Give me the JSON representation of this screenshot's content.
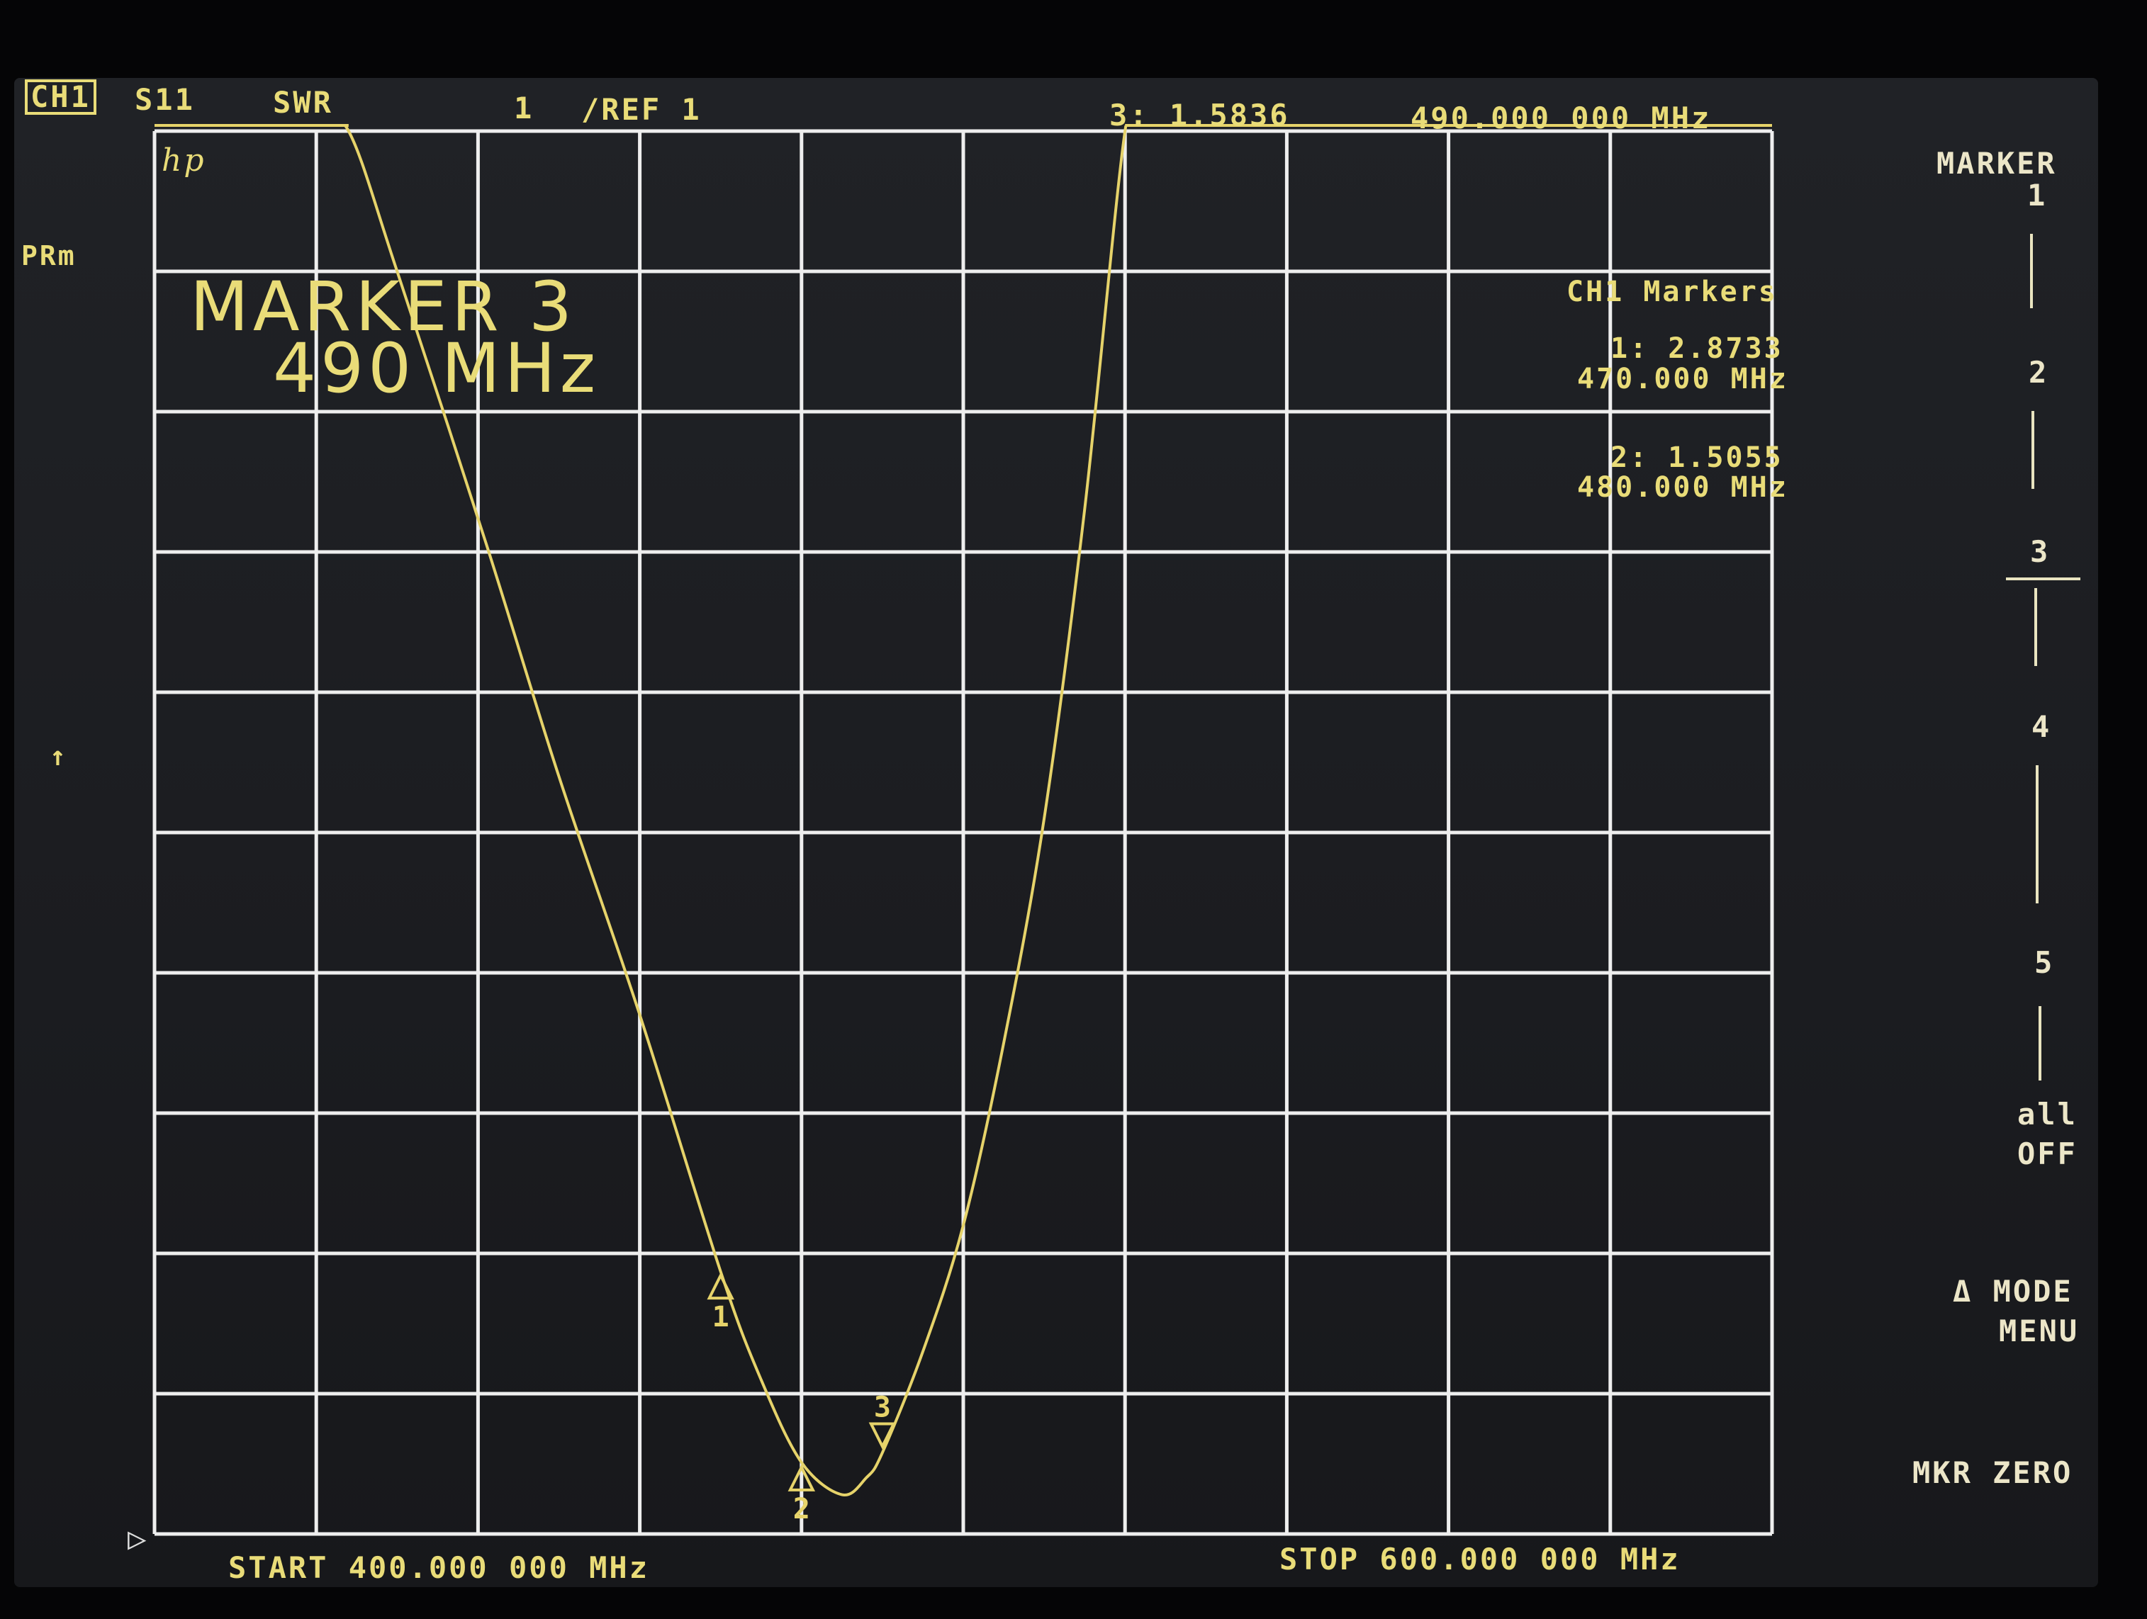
{
  "header": {
    "channel": "CH1",
    "parameter": "S11",
    "format": "SWR",
    "scale": "1",
    "reference": "/REF 1",
    "active_marker_readout": "3: 1.5836",
    "active_marker_frequency": "490.000 000 MHz"
  },
  "left_annotations": {
    "prm": "PRm",
    "arrow": "↑",
    "ref_pointer": "▷"
  },
  "logo": "hp",
  "marker_title": {
    "line1": "MARKER 3",
    "line2": "490 MHz"
  },
  "marker_list": {
    "title": "CH1 Markers",
    "items": [
      {
        "value": "1: 2.8733",
        "freq": "470.000 MHz"
      },
      {
        "value": "2: 1.5055",
        "freq": "480.000 MHz"
      }
    ]
  },
  "softkeys": {
    "title": "MARKER",
    "keys": [
      "1",
      "2",
      "3",
      "4",
      "5"
    ],
    "all_off": [
      "all",
      "OFF"
    ],
    "mode_menu": [
      "Δ MODE",
      "MENU"
    ],
    "mkr_zero": "MKR ZERO"
  },
  "footer": {
    "start": "START 400.000 000 MHz",
    "stop": "STOP 600.000 000 MHz"
  },
  "colors": {
    "trace": "#e6d36a",
    "grid": "#eeeeee",
    "text": "#e9dc78",
    "background": "#1c1d20"
  },
  "chart_data": {
    "type": "line",
    "xlabel": "",
    "ylabel": "",
    "x_unit": "MHz",
    "xlim": [
      400,
      600
    ],
    "ylim": [
      1,
      11
    ],
    "y_scale_per_div": 1,
    "divisions": {
      "x": 10,
      "y": 10
    },
    "grid": true,
    "series": [
      {
        "x": [
          420,
          424,
          430,
          441,
          450,
          460,
          470,
          475,
          480,
          485,
          488,
          490,
          495,
          500,
          505,
          510,
          515,
          520,
          522
        ],
        "y": [
          11.6,
          11.0,
          10.0,
          8.06,
          6.4,
          4.7,
          2.87,
          2.1,
          1.51,
          1.28,
          1.4,
          1.58,
          2.3,
          3.2,
          4.5,
          6.1,
          8.3,
          11.0,
          11.6
        ]
      }
    ],
    "markers": [
      {
        "label": "1",
        "x": 470,
        "y": 2.8733
      },
      {
        "label": "2",
        "x": 480,
        "y": 1.5055
      },
      {
        "label": "3",
        "x": 490,
        "y": 1.5836,
        "active": true
      }
    ]
  }
}
